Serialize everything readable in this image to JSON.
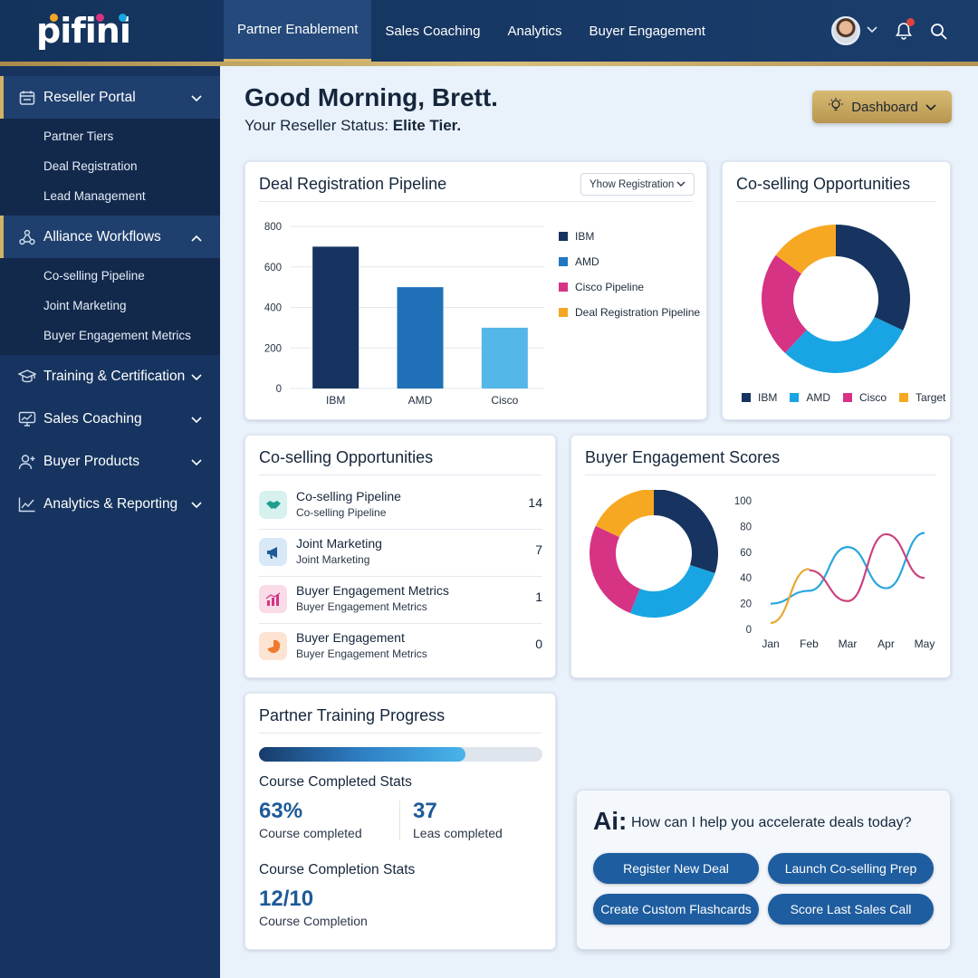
{
  "brand": {
    "logo_text": "pifini"
  },
  "topnav": {
    "tabs": [
      "Partner Enablement",
      "Sales Coaching",
      "Analytics",
      "Buyer Engagement"
    ]
  },
  "sidebar": {
    "sections": [
      {
        "label": "Reseller Portal",
        "icon": "calendar-icon",
        "children": [
          "Partner Tiers",
          "Deal Registration",
          "Lead Management"
        ]
      },
      {
        "label": "Alliance Workflows",
        "icon": "network-icon",
        "children": [
          "Co-selling Pipeline",
          "Joint Marketing",
          "Buyer Engagement Metrics"
        ]
      },
      {
        "label": "Training & Certification",
        "icon": "graduation-cap-icon"
      },
      {
        "label": "Sales Coaching",
        "icon": "monitor-chart-icon"
      },
      {
        "label": "Buyer Products",
        "icon": "user-plus-icon"
      },
      {
        "label": "Analytics & Reporting",
        "icon": "line-chart-icon"
      }
    ]
  },
  "header": {
    "greeting": "Good Morning, Brett.",
    "status_prefix": "Your Reseller Status: ",
    "status_value": "Elite Tier.",
    "dashboard_button": "Dashboard"
  },
  "deal_pipeline": {
    "title": "Deal Registration Pipeline",
    "select_value": "Yhow Registration",
    "legend": [
      "IBM",
      "AMD",
      "Cisco Pipeline",
      "Deal Registration Pipeline"
    ],
    "legend_colors": [
      "#16345f",
      "#1f77c4",
      "#d63384",
      "#f5a623"
    ],
    "chart_data": {
      "type": "bar",
      "categories": [
        "IBM",
        "AMD",
        "Cisco"
      ],
      "values": [
        700,
        500,
        300
      ],
      "colors": [
        "#16345f",
        "#1f70b7",
        "#55b6e8"
      ],
      "ylim": [
        0,
        800
      ],
      "yticks": [
        0,
        200,
        400,
        600,
        800
      ]
    }
  },
  "coselling_donut": {
    "title": "Co-selling Opportunities",
    "chart_data": {
      "type": "pie",
      "labels": [
        "IBM",
        "AMD",
        "Cisco",
        "Target"
      ],
      "values": [
        32,
        30,
        23,
        15
      ],
      "colors": [
        "#16345f",
        "#19a5e3",
        "#d63384",
        "#f7a823"
      ]
    }
  },
  "coselling_list": {
    "title": "Co-selling Opportunities",
    "rows": [
      {
        "title": "Co-selling Pipeline",
        "subtitle": "Co-selling Pipeline",
        "count": "14",
        "icon": "handshake-icon",
        "icon_bg": "#d6f1ee",
        "icon_color": "#1f9e8f"
      },
      {
        "title": "Joint Marketing",
        "subtitle": "Joint Marketing",
        "count": "7",
        "icon": "megaphone-icon",
        "icon_bg": "#d9e8f7",
        "icon_color": "#1e5a96"
      },
      {
        "title": "Buyer Engagement Metrics",
        "subtitle": "Buyer Engagement Metrics",
        "count": "1",
        "icon": "bar-chart-icon",
        "icon_bg": "#f9dce8",
        "icon_color": "#d63384"
      },
      {
        "title": "Buyer Engagement",
        "subtitle": "Buyer Engagement Metrics",
        "count": "0",
        "icon": "pie-chart-icon",
        "icon_bg": "#fde3d2",
        "icon_color": "#ef7a2d"
      }
    ]
  },
  "buyer_engagement": {
    "title": "Buyer Engagement Scores",
    "chart_data": [
      {
        "type": "pie",
        "values": [
          30,
          26,
          26,
          18
        ],
        "colors": [
          "#16345f",
          "#19a5e3",
          "#d63384",
          "#f7a823"
        ]
      },
      {
        "type": "line",
        "x": [
          "Jan",
          "Feb",
          "Mar",
          "Apr",
          "May"
        ],
        "ylim": [
          0,
          100
        ],
        "yticks": [
          0,
          20,
          40,
          60,
          80,
          100
        ],
        "series": [
          {
            "color": "#2aa7de",
            "values": [
              20,
              30,
              64,
              32,
              75
            ]
          },
          {
            "color": "#c9437e",
            "values": [
              null,
              46,
              22,
              74,
              40
            ]
          },
          {
            "color": "#e8a92f",
            "values": [
              5,
              47,
              null,
              null,
              null
            ]
          }
        ]
      }
    ]
  },
  "training": {
    "title": "Partner Training Progress",
    "progress": 0.73,
    "completed_heading": "Course Completed Stats",
    "stat1_value": "63%",
    "stat1_label": "Course completed",
    "stat2_value": "37",
    "stat2_label": "Leas completed",
    "completion_heading": "Course Completion Stats",
    "stat3_value": "12/10",
    "stat3_label": "Course Completion"
  },
  "ai": {
    "logo": "Ai:",
    "prompt": "How can I help you accelerate deals today?",
    "buttons": [
      "Register New Deal",
      "Launch Co-selling Prep",
      "Create Custom Flashcards",
      "Score Last Sales Call"
    ]
  }
}
